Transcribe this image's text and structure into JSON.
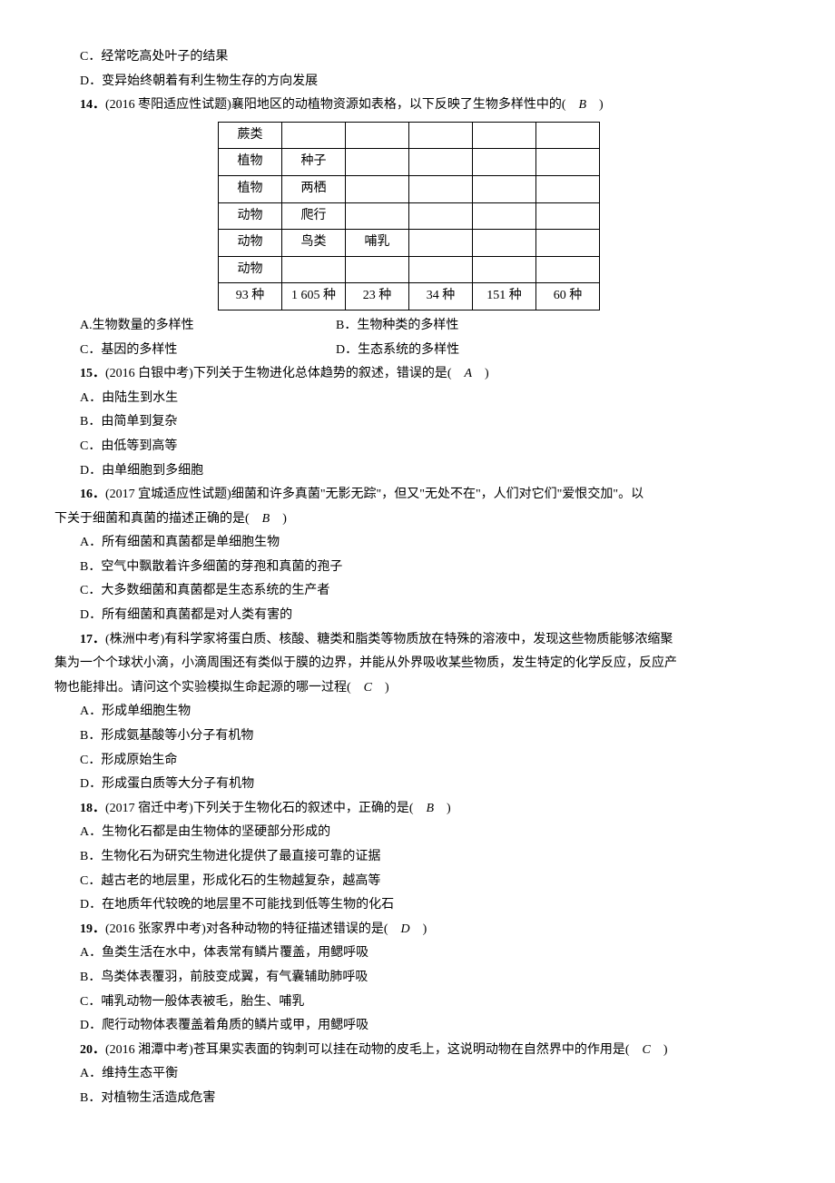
{
  "q13": {
    "optC": "C．经常吃高处叶子的结果",
    "optD": "D．变异始终朝着有利生物生存的方向发展"
  },
  "q14": {
    "num": "14．",
    "stem": "(2016 枣阳适应性试题)襄阳地区的动植物资源如表格，以下反映了生物多样性中的(　",
    "ans": "B",
    "close": "　)",
    "table": {
      "r1": [
        "蕨类",
        "",
        "",
        "",
        "",
        ""
      ],
      "r2": [
        "植物",
        "种子",
        "",
        "",
        "",
        ""
      ],
      "r3": [
        "植物",
        "两栖",
        "",
        "",
        "",
        ""
      ],
      "r4": [
        "动物",
        "爬行",
        "",
        "",
        "",
        ""
      ],
      "r5": [
        "动物",
        "鸟类",
        "哺乳",
        "",
        "",
        ""
      ],
      "r6": [
        "动物",
        "",
        "",
        "",
        "",
        ""
      ],
      "r7": [
        "93 种",
        "1 605 种",
        "23 种",
        "34 种",
        "151 种",
        "60 种"
      ]
    },
    "optA": "A.生物数量的多样性",
    "optB": "B．生物种类的多样性",
    "optC": "C．基因的多样性",
    "optD": "D．生态系统的多样性"
  },
  "q15": {
    "num": "15．",
    "stem": "(2016 白银中考)下列关于生物进化总体趋势的叙述，错误的是(　",
    "ans": "A",
    "close": "　)",
    "optA": "A．由陆生到水生",
    "optB": "B．由简单到复杂",
    "optC": "C．由低等到高等",
    "optD": "D．由单细胞到多细胞"
  },
  "q16": {
    "num": "16．",
    "stem1": "(2017 宜城适应性试题)细菌和许多真菌\"无影无踪\"，但又\"无处不在\"，人们对它们\"爱恨交加\"。以",
    "stem2": "下关于细菌和真菌的描述正确的是(　",
    "ans": "B",
    "close": "　)",
    "optA": "A．所有细菌和真菌都是单细胞生物",
    "optB": "B．空气中飘散着许多细菌的芽孢和真菌的孢子",
    "optC": "C．大多数细菌和真菌都是生态系统的生产者",
    "optD": "D．所有细菌和真菌都是对人类有害的"
  },
  "q17": {
    "num": "17．",
    "stem1": "(株洲中考)有科学家将蛋白质、核酸、糖类和脂类等物质放在特殊的溶液中，发现这些物质能够浓缩聚",
    "stem2": "集为一个个球状小滴，小滴周围还有类似于膜的边界，并能从外界吸收某些物质，发生特定的化学反应，反应产",
    "stem3": "物也能排出。请问这个实验模拟生命起源的哪一过程(　",
    "ans": "C",
    "close": "　)",
    "optA": "A．形成单细胞生物",
    "optB": "B．形成氨基酸等小分子有机物",
    "optC": "C．形成原始生命",
    "optD": "D．形成蛋白质等大分子有机物"
  },
  "q18": {
    "num": "18．",
    "stem": "(2017 宿迁中考)下列关于生物化石的叙述中，正确的是(　",
    "ans": "B",
    "close": "　)",
    "optA": "A．生物化石都是由生物体的坚硬部分形成的",
    "optB": "B．生物化石为研究生物进化提供了最直接可靠的证据",
    "optC": "C．越古老的地层里，形成化石的生物越复杂，越高等",
    "optD": "D．在地质年代较晚的地层里不可能找到低等生物的化石"
  },
  "q19": {
    "num": "19．",
    "stem": "(2016 张家界中考)对各种动物的特征描述错误的是(　",
    "ans": "D",
    "close": "　)",
    "optA": "A．鱼类生活在水中，体表常有鳞片覆盖，用鳃呼吸",
    "optB": "B．鸟类体表覆羽，前肢变成翼，有气囊辅助肺呼吸",
    "optC": "C．哺乳动物一般体表被毛，胎生、哺乳",
    "optD": "D．爬行动物体表覆盖着角质的鳞片或甲，用鳃呼吸"
  },
  "q20": {
    "num": "20．",
    "stem": "(2016 湘潭中考)苍耳果实表面的钩刺可以挂在动物的皮毛上，这说明动物在自然界中的作用是(　",
    "ans": "C",
    "close": "　)",
    "optA": "A．维持生态平衡",
    "optB": "B．对植物生活造成危害"
  }
}
